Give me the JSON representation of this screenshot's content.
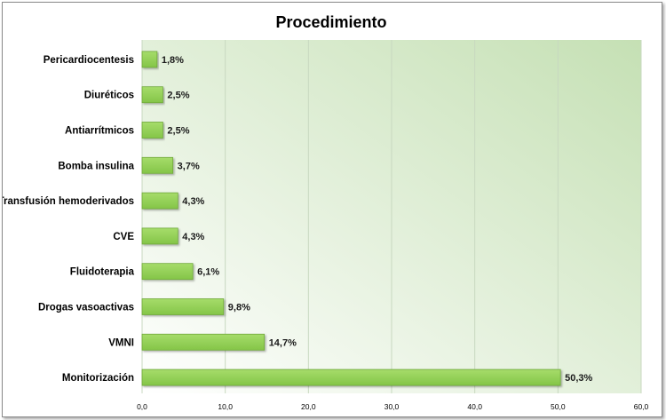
{
  "chart_data": {
    "type": "bar",
    "orientation": "horizontal",
    "title": "Procedimiento",
    "xlabel": "",
    "ylabel": "",
    "categories": [
      "Pericardiocentesis",
      "Diuréticos",
      "Antiarrítmicos",
      "Bomba insulina",
      "Transfusión hemoderivados",
      "CVE",
      "Fluidoterapia",
      "Drogas vasoactivas",
      "VMNI",
      "Monitorización"
    ],
    "values": [
      1.8,
      2.5,
      2.5,
      3.7,
      4.3,
      4.3,
      6.1,
      9.8,
      14.7,
      50.3
    ],
    "value_labels": [
      "1,8%",
      "2,5%",
      "2,5%",
      "3,7%",
      "4,3%",
      "4,3%",
      "6,1%",
      "9,8%",
      "14,7%",
      "50,3%"
    ],
    "xlim": [
      0,
      60
    ],
    "xticks": [
      0,
      10,
      20,
      30,
      40,
      50,
      60
    ],
    "xtick_labels": [
      "0,0",
      "10,0",
      "20,0",
      "30,0",
      "40,0",
      "50,0",
      "60,0"
    ],
    "grid": true,
    "legend": false,
    "colors": {
      "bar": "#92d050",
      "bar_border": "#6fa83a",
      "plot_bg_light": "#ffffff",
      "plot_bg_dark": "#c5e0b4",
      "grid": "#c8d8c0"
    }
  }
}
